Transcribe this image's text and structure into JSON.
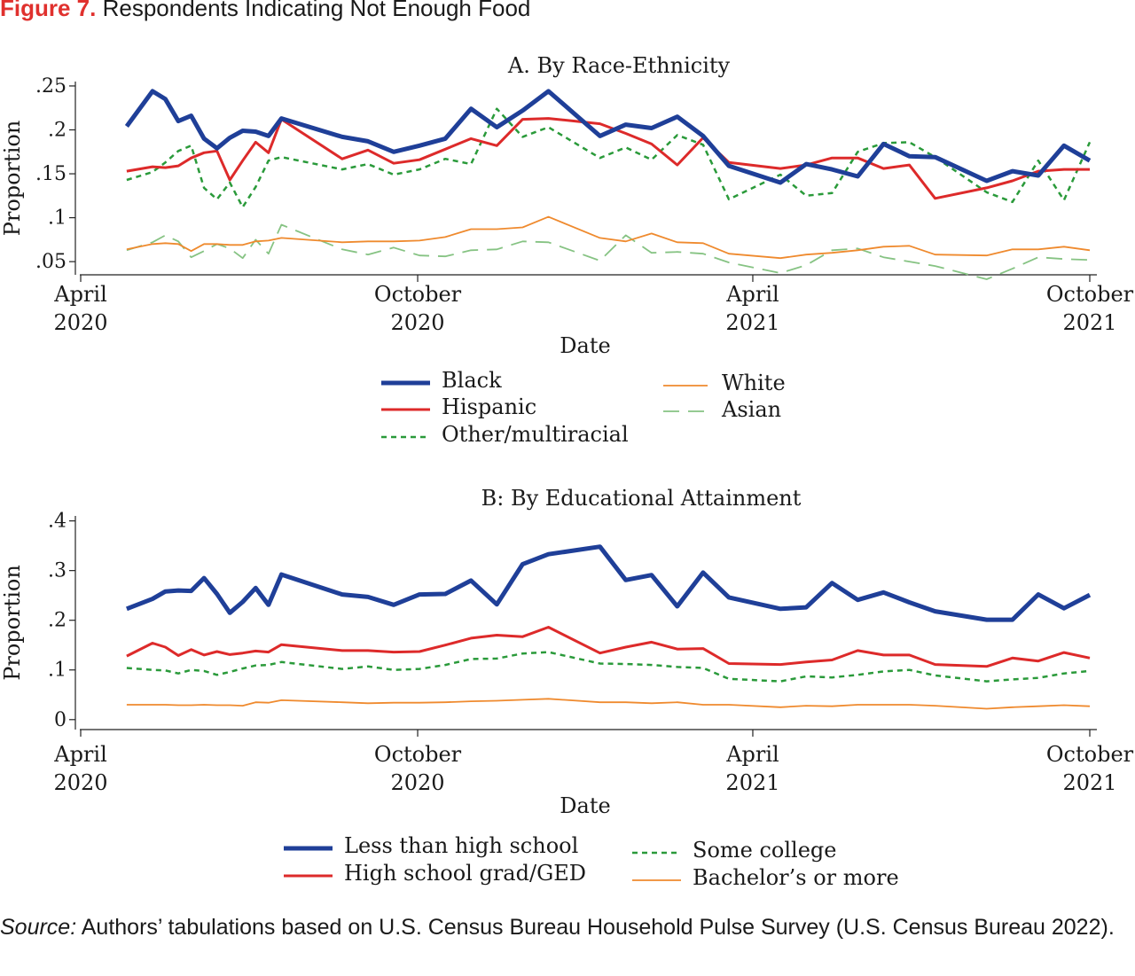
{
  "figure": {
    "label": "Figure 7.",
    "title": "Respondents Indicating Not Enough Food",
    "source_label": "Source:",
    "source_text": "Authors’ tabulations based on U.S. Census Bureau Household Pulse Survey (U.S. Census Bureau 2022)."
  },
  "chart_data": [
    {
      "type": "line",
      "title": "A. By Race-Ethnicity",
      "xlabel": "Date",
      "ylabel": "Proportion",
      "xlim": [
        "2020-04-01",
        "2021-10-01"
      ],
      "ylim": [
        0.035,
        0.255
      ],
      "yticks": [
        0.05,
        0.1,
        0.15,
        0.2,
        0.25
      ],
      "ytick_labels": [
        ".05",
        ".1",
        ".15",
        ".2",
        ".25"
      ],
      "xticks": [
        {
          "date": "2020-04-01",
          "line1": "April",
          "line2": "2020"
        },
        {
          "date": "2020-10-01",
          "line1": "October",
          "line2": "2020"
        },
        {
          "date": "2021-04-01",
          "line1": "April",
          "line2": "2021"
        },
        {
          "date": "2021-10-01",
          "line1": "October",
          "line2": "2021"
        }
      ],
      "grid": false,
      "legend_position": "bottom",
      "x": [
        "2020-04-26",
        "2020-05-10",
        "2020-05-17",
        "2020-05-24",
        "2020-05-31",
        "2020-06-07",
        "2020-06-14",
        "2020-06-21",
        "2020-06-28",
        "2020-07-05",
        "2020-07-12",
        "2020-07-19",
        "2020-08-21",
        "2020-09-04",
        "2020-09-18",
        "2020-10-02",
        "2020-10-16",
        "2020-10-30",
        "2020-11-13",
        "2020-11-27",
        "2020-12-11",
        "2021-01-08",
        "2021-01-22",
        "2021-02-05",
        "2021-02-19",
        "2021-03-05",
        "2021-03-19",
        "2021-04-16",
        "2021-04-30",
        "2021-05-14",
        "2021-05-28",
        "2021-06-11",
        "2021-06-25",
        "2021-07-09",
        "2021-08-06",
        "2021-08-20",
        "2021-09-03",
        "2021-09-17",
        "2021-10-01"
      ],
      "series": [
        {
          "name": "Black",
          "color": "#1f3f98",
          "width": 5,
          "dash": "solid",
          "values": [
            0.204,
            0.244,
            0.235,
            0.21,
            0.216,
            0.19,
            0.179,
            0.191,
            0.199,
            0.198,
            0.193,
            0.213,
            0.192,
            0.187,
            0.175,
            0.182,
            0.19,
            0.224,
            0.203,
            0.222,
            0.244,
            0.193,
            0.206,
            0.202,
            0.215,
            0.193,
            0.159,
            0.14,
            0.161,
            0.155,
            0.147,
            0.184,
            0.17,
            0.169,
            0.142,
            0.153,
            0.148,
            0.182,
            0.165
          ]
        },
        {
          "name": "Hispanic",
          "color": "#dd2a2a",
          "width": 3,
          "dash": "solid",
          "values": [
            0.153,
            0.158,
            0.157,
            0.159,
            0.168,
            0.174,
            0.176,
            0.143,
            0.165,
            0.186,
            0.174,
            0.212,
            0.167,
            0.177,
            0.162,
            0.166,
            0.178,
            0.19,
            0.182,
            0.212,
            0.213,
            0.207,
            0.196,
            0.184,
            0.16,
            0.191,
            0.163,
            0.156,
            0.16,
            0.168,
            0.168,
            0.156,
            0.16,
            0.122,
            0.134,
            0.142,
            0.153,
            0.155,
            0.155
          ]
        },
        {
          "name": "Other/multiracial",
          "color": "#2a9a3a",
          "width": 2.5,
          "dash": "6 5",
          "values": [
            0.143,
            0.152,
            0.163,
            0.176,
            0.182,
            0.134,
            0.121,
            0.14,
            0.112,
            0.135,
            0.165,
            0.169,
            0.155,
            0.161,
            0.149,
            0.155,
            0.167,
            0.161,
            0.224,
            0.192,
            0.203,
            0.168,
            0.18,
            0.166,
            0.194,
            0.183,
            0.121,
            0.149,
            0.125,
            0.128,
            0.175,
            0.185,
            0.186,
            0.169,
            0.129,
            0.118,
            0.165,
            0.12,
            0.186
          ]
        },
        {
          "name": "White",
          "color": "#ef8a2e",
          "width": 1.8,
          "dash": "solid",
          "values": [
            0.064,
            0.07,
            0.071,
            0.07,
            0.062,
            0.07,
            0.07,
            0.069,
            0.069,
            0.073,
            0.074,
            0.077,
            0.072,
            0.073,
            0.073,
            0.074,
            0.078,
            0.087,
            0.087,
            0.089,
            0.101,
            0.077,
            0.073,
            0.082,
            0.072,
            0.071,
            0.059,
            0.054,
            0.058,
            0.06,
            0.063,
            0.067,
            0.068,
            0.058,
            0.057,
            0.064,
            0.064,
            0.067,
            0.063
          ]
        },
        {
          "name": "Asian",
          "color": "#86c383",
          "width": 1.8,
          "dash": "18 10",
          "values": [
            0.063,
            0.072,
            0.08,
            0.073,
            0.055,
            0.062,
            0.07,
            0.065,
            0.054,
            0.075,
            0.059,
            0.092,
            0.064,
            0.058,
            0.066,
            0.057,
            0.056,
            0.063,
            0.064,
            0.073,
            0.072,
            0.051,
            0.08,
            0.06,
            0.061,
            0.059,
            0.049,
            0.037,
            0.046,
            0.063,
            0.065,
            0.055,
            0.05,
            0.045,
            0.03,
            0.042,
            0.055,
            0.053,
            0.052
          ]
        }
      ]
    },
    {
      "type": "line",
      "title": "B: By Educational Attainment",
      "xlabel": "Date",
      "ylabel": "Proportion",
      "xlim": [
        "2020-04-01",
        "2021-10-01"
      ],
      "ylim": [
        -0.02,
        0.41
      ],
      "yticks": [
        0,
        0.1,
        0.2,
        0.3,
        0.4
      ],
      "ytick_labels": [
        "0",
        ".1",
        ".2",
        ".3",
        ".4"
      ],
      "xticks": [
        {
          "date": "2020-04-01",
          "line1": "April",
          "line2": "2020"
        },
        {
          "date": "2020-10-01",
          "line1": "October",
          "line2": "2020"
        },
        {
          "date": "2021-04-01",
          "line1": "April",
          "line2": "2021"
        },
        {
          "date": "2021-10-01",
          "line1": "October",
          "line2": "2021"
        }
      ],
      "grid": false,
      "legend_position": "bottom",
      "x": [
        "2020-04-26",
        "2020-05-10",
        "2020-05-17",
        "2020-05-24",
        "2020-05-31",
        "2020-06-07",
        "2020-06-14",
        "2020-06-21",
        "2020-06-28",
        "2020-07-05",
        "2020-07-12",
        "2020-07-19",
        "2020-08-21",
        "2020-09-04",
        "2020-09-18",
        "2020-10-02",
        "2020-10-16",
        "2020-10-30",
        "2020-11-13",
        "2020-11-27",
        "2020-12-11",
        "2021-01-08",
        "2021-01-22",
        "2021-02-05",
        "2021-02-19",
        "2021-03-05",
        "2021-03-19",
        "2021-04-16",
        "2021-04-30",
        "2021-05-14",
        "2021-05-28",
        "2021-06-11",
        "2021-06-25",
        "2021-07-09",
        "2021-08-06",
        "2021-08-20",
        "2021-09-03",
        "2021-09-17",
        "2021-10-01"
      ],
      "series": [
        {
          "name": "Less than high school",
          "color": "#1f3f98",
          "width": 5,
          "dash": "solid",
          "values": [
            0.223,
            0.243,
            0.258,
            0.26,
            0.259,
            0.285,
            0.253,
            0.215,
            0.237,
            0.265,
            0.231,
            0.292,
            0.252,
            0.247,
            0.231,
            0.252,
            0.253,
            0.28,
            0.232,
            0.313,
            0.333,
            0.348,
            0.281,
            0.291,
            0.228,
            0.296,
            0.246,
            0.223,
            0.226,
            0.275,
            0.241,
            0.256,
            0.236,
            0.218,
            0.201,
            0.201,
            0.252,
            0.224,
            0.251
          ]
        },
        {
          "name": "High school grad/GED",
          "color": "#dd2a2a",
          "width": 3,
          "dash": "solid",
          "values": [
            0.128,
            0.154,
            0.146,
            0.129,
            0.141,
            0.13,
            0.137,
            0.131,
            0.134,
            0.138,
            0.136,
            0.151,
            0.139,
            0.139,
            0.136,
            0.137,
            0.15,
            0.164,
            0.17,
            0.167,
            0.186,
            0.134,
            0.146,
            0.156,
            0.142,
            0.143,
            0.113,
            0.111,
            0.116,
            0.12,
            0.139,
            0.13,
            0.13,
            0.111,
            0.107,
            0.124,
            0.118,
            0.135,
            0.124
          ]
        },
        {
          "name": "Some college",
          "color": "#2a9a3a",
          "width": 2.5,
          "dash": "6 5",
          "values": [
            0.104,
            0.1,
            0.099,
            0.093,
            0.1,
            0.098,
            0.09,
            0.096,
            0.103,
            0.109,
            0.11,
            0.116,
            0.102,
            0.107,
            0.1,
            0.102,
            0.11,
            0.122,
            0.123,
            0.133,
            0.136,
            0.113,
            0.112,
            0.11,
            0.106,
            0.104,
            0.082,
            0.077,
            0.087,
            0.085,
            0.09,
            0.097,
            0.1,
            0.089,
            0.077,
            0.081,
            0.084,
            0.093,
            0.098
          ]
        },
        {
          "name": "Bachelor’s or more",
          "color": "#ef8a2e",
          "width": 1.8,
          "dash": "solid",
          "values": [
            0.03,
            0.03,
            0.03,
            0.029,
            0.029,
            0.03,
            0.029,
            0.029,
            0.028,
            0.035,
            0.034,
            0.039,
            0.035,
            0.033,
            0.034,
            0.034,
            0.035,
            0.037,
            0.038,
            0.04,
            0.042,
            0.035,
            0.035,
            0.033,
            0.035,
            0.03,
            0.03,
            0.025,
            0.028,
            0.027,
            0.03,
            0.03,
            0.03,
            0.028,
            0.022,
            0.025,
            0.027,
            0.029,
            0.027
          ]
        }
      ]
    }
  ]
}
